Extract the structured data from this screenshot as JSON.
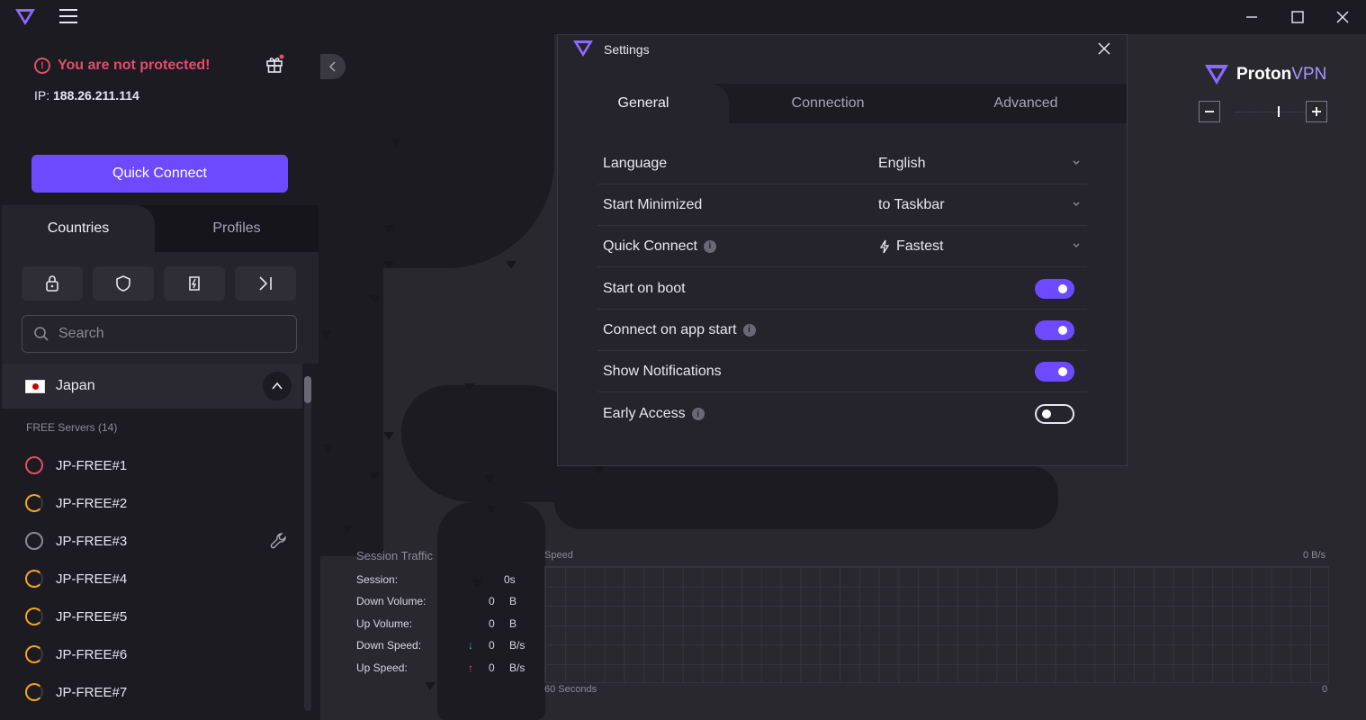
{
  "window": {
    "controls": [
      "minimize",
      "maximize",
      "close"
    ]
  },
  "status": {
    "warning": "You are not protected!",
    "ip_label": "IP:",
    "ip_value": "188.26.211.114"
  },
  "quick_connect_label": "Quick Connect",
  "sidebar_tabs": {
    "countries": "Countries",
    "profiles": "Profiles"
  },
  "filters": [
    "secure-core-icon",
    "shield-icon",
    "p2p-icon",
    "tor-icon"
  ],
  "search": {
    "placeholder": "Search"
  },
  "country": {
    "name": "Japan",
    "group_label": "FREE Servers (14)"
  },
  "servers": [
    {
      "name": "JP-FREE#1",
      "load_color": "#e34d6b"
    },
    {
      "name": "JP-FREE#2",
      "load_color": "#f5a623"
    },
    {
      "name": "JP-FREE#3",
      "load_color": "#8c8997"
    },
    {
      "name": "JP-FREE#4",
      "load_color": "#f5a623"
    },
    {
      "name": "JP-FREE#5",
      "load_color": "#f5a623"
    },
    {
      "name": "JP-FREE#6",
      "load_color": "#f5a623"
    },
    {
      "name": "JP-FREE#7",
      "load_color": "#f5a623"
    }
  ],
  "brand": {
    "name": "Proton",
    "suffix": "VPN"
  },
  "traffic": {
    "title": "Session Traffic",
    "rows": [
      {
        "label": "Session:",
        "value": "0s",
        "unit": ""
      },
      {
        "label": "Down Volume:",
        "value": "0",
        "unit": "B"
      },
      {
        "label": "Up Volume:",
        "value": "0",
        "unit": "B"
      },
      {
        "label": "Down Speed:",
        "value": "0",
        "unit": "B/s"
      },
      {
        "label": "Up Speed:",
        "value": "0",
        "unit": "B/s"
      }
    ]
  },
  "speed": {
    "label": "Speed",
    "max": "0 B/s",
    "x_label": "60 Seconds",
    "zero": "0"
  },
  "settings": {
    "title": "Settings",
    "tabs": [
      "General",
      "Connection",
      "Advanced"
    ],
    "language": {
      "label": "Language",
      "value": "English"
    },
    "start_minimized": {
      "label": "Start Minimized",
      "value": "to Taskbar"
    },
    "quick_connect": {
      "label": "Quick Connect",
      "value": "Fastest"
    },
    "start_on_boot": {
      "label": "Start on boot",
      "enabled": true
    },
    "connect_on_start": {
      "label": "Connect on app start",
      "enabled": true
    },
    "notifications": {
      "label": "Show Notifications",
      "enabled": true
    },
    "early_access": {
      "label": "Early Access",
      "enabled": false
    }
  },
  "colors": {
    "accent": "#6d4aff",
    "danger": "#e34d6b",
    "warning": "#f5a623"
  }
}
